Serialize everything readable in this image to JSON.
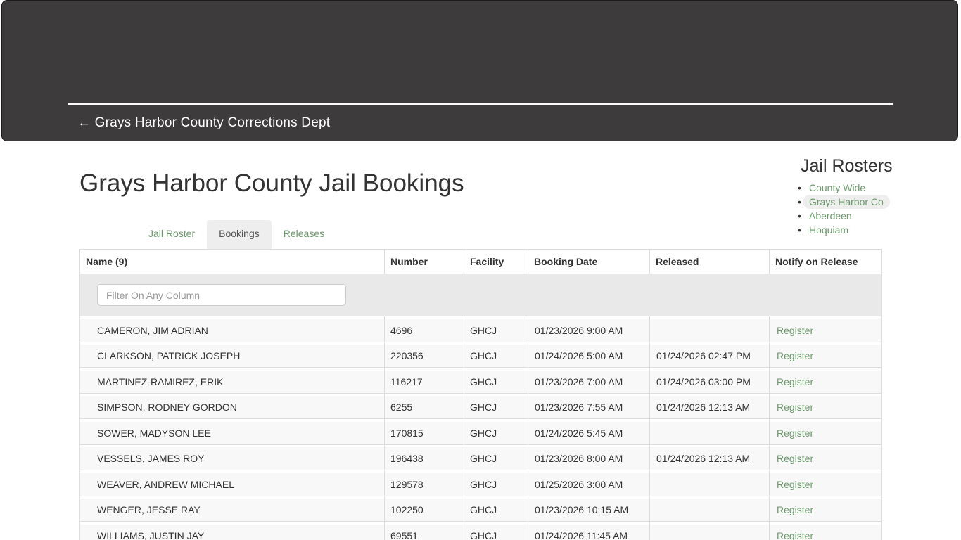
{
  "hero": {
    "back_link_label": "← Grays Harbor County Corrections Dept"
  },
  "page": {
    "title": "Grays Harbor County Jail Bookings"
  },
  "rosters": {
    "heading": "Jail Rosters",
    "items": [
      {
        "label": "County Wide",
        "active": false
      },
      {
        "label": "Grays Harbor Co",
        "active": true
      },
      {
        "label": "Aberdeen",
        "active": false
      },
      {
        "label": "Hoquiam",
        "active": false
      }
    ]
  },
  "tabs": [
    {
      "label": "Jail Roster",
      "active": false
    },
    {
      "label": "Bookings",
      "active": true
    },
    {
      "label": "Releases",
      "active": false
    }
  ],
  "table": {
    "columns": [
      "Name (9)",
      "Number",
      "Facility",
      "Booking Date",
      "Released",
      "Notify on Release"
    ],
    "filter_placeholder": "Filter On Any Column",
    "register_label": "Register",
    "rows": [
      {
        "name": "CAMERON, JIM ADRIAN",
        "number": "4696",
        "facility": "GHCJ",
        "booking_date": "01/23/2026 9:00 AM",
        "released": ""
      },
      {
        "name": "CLARKSON, PATRICK JOSEPH",
        "number": "220356",
        "facility": "GHCJ",
        "booking_date": "01/24/2026 5:00 AM",
        "released": "01/24/2026 02:47 PM"
      },
      {
        "name": "MARTINEZ-RAMIREZ, ERIK",
        "number": "116217",
        "facility": "GHCJ",
        "booking_date": "01/23/2026 7:00 AM",
        "released": "01/24/2026 03:00 PM"
      },
      {
        "name": "SIMPSON, RODNEY GORDON",
        "number": "6255",
        "facility": "GHCJ",
        "booking_date": "01/23/2026 7:55 AM",
        "released": "01/24/2026 12:13 AM"
      },
      {
        "name": "SOWER, MADYSON LEE",
        "number": "170815",
        "facility": "GHCJ",
        "booking_date": "01/24/2026 5:45 AM",
        "released": ""
      },
      {
        "name": "VESSELS, JAMES ROY",
        "number": "196438",
        "facility": "GHCJ",
        "booking_date": "01/23/2026 8:00 AM",
        "released": "01/24/2026 12:13 AM"
      },
      {
        "name": "WEAVER, ANDREW MICHAEL",
        "number": "129578",
        "facility": "GHCJ",
        "booking_date": "01/25/2026 3:00 AM",
        "released": ""
      },
      {
        "name": "WENGER, JESSE RAY",
        "number": "102250",
        "facility": "GHCJ",
        "booking_date": "01/23/2026 10:15 AM",
        "released": ""
      },
      {
        "name": "WILLIAMS, JUSTIN JAY",
        "number": "69551",
        "facility": "GHCJ",
        "booking_date": "01/24/2026 11:45 AM",
        "released": ""
      }
    ]
  },
  "colors": {
    "hero_bg": "#3d3b3c",
    "accent_green": "#6d9a6d",
    "active_pill_bg": "#eeeeee",
    "table_border": "#dddddd",
    "row_bg": "#f8f8f8",
    "filter_row_bg": "#e9e9e9"
  }
}
